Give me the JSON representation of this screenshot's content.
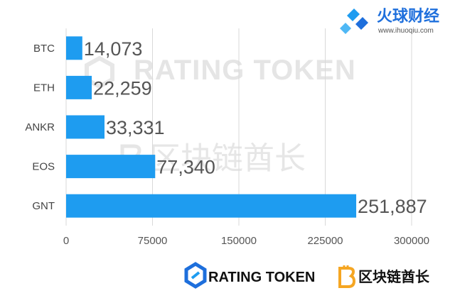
{
  "header": {
    "logo_cn": "火球财经",
    "logo_url": "www.ihuoqiu.com"
  },
  "watermark": {
    "text_en": "RATING TOKEN",
    "text_cn": "区块链酋长"
  },
  "footer": {
    "rating_token": "RATING TOKEN",
    "chief_cn": "区块链酋长"
  },
  "colors": {
    "bar": "#1e9cf0",
    "grid": "#d9d9d9",
    "logo_blue": "#1e6fdc",
    "chief_orange": "#f5a623"
  },
  "chart_data": {
    "type": "bar",
    "orientation": "horizontal",
    "categories": [
      "BTC",
      "ETH",
      "ANKR",
      "EOS",
      "GNT"
    ],
    "values": [
      14073,
      22259,
      33331,
      77340,
      251887
    ],
    "value_labels": [
      "14,073",
      "22,259",
      "33,331",
      "77,340",
      "251,887"
    ],
    "xlim": [
      0,
      300000
    ],
    "x_ticks": [
      0,
      75000,
      150000,
      225000,
      300000
    ],
    "x_tick_labels": [
      "0",
      "75000",
      "150000",
      "225000",
      "300000"
    ],
    "grid": true,
    "title": "",
    "xlabel": "",
    "ylabel": ""
  }
}
